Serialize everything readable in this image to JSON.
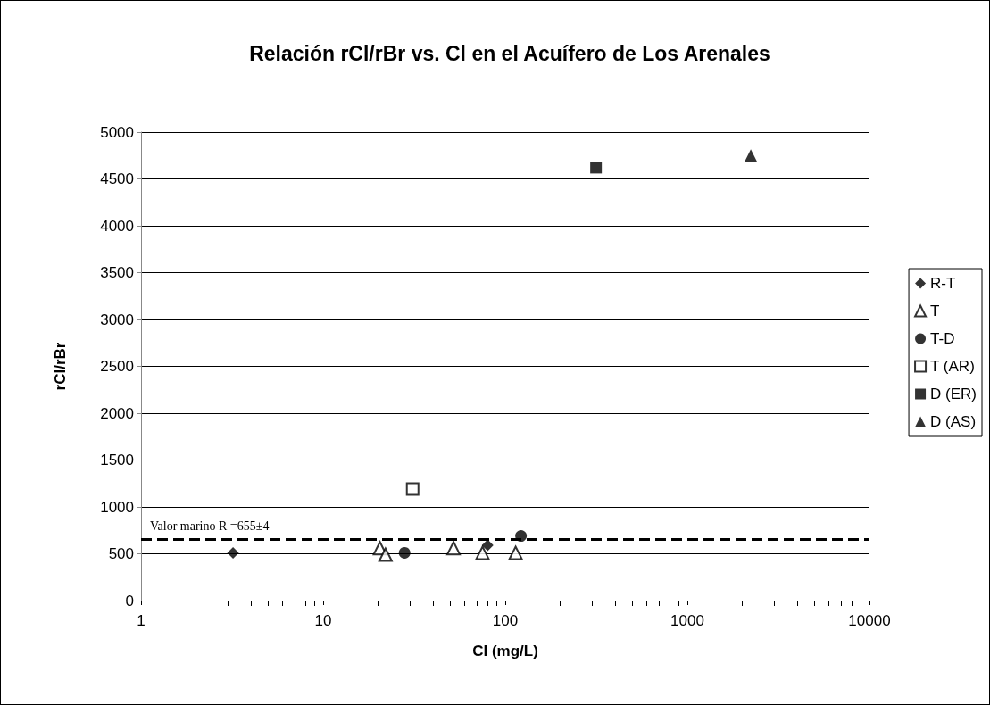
{
  "chart_data": {
    "type": "scatter",
    "title": "Relación rCl/rBr vs. Cl en el Acuífero de Los Arenales",
    "xlabel": "Cl (mg/L)",
    "ylabel": "rCl/rBr",
    "log": "x",
    "xlim": [
      1,
      10000
    ],
    "xticks": [
      1,
      10,
      100,
      1000,
      10000
    ],
    "ylim": [
      0,
      5000
    ],
    "yticks": [
      0,
      500,
      1000,
      1500,
      2000,
      2500,
      3000,
      3500,
      4000,
      4500,
      5000
    ],
    "grid": "y",
    "legend": "right",
    "series": [
      {
        "name": "R-T",
        "color": "#000000",
        "marker": "diamond",
        "x": [
          3.2,
          80
        ],
        "values": [
          510,
          590
        ]
      },
      {
        "name": "T",
        "color": "#ffffff",
        "marker": "triangle",
        "x": [
          20.5,
          22,
          52,
          75,
          114
        ],
        "values": [
          560,
          490,
          560,
          510,
          510
        ]
      },
      {
        "name": "T-D",
        "color": "#000000",
        "marker": "circle",
        "x": [
          28,
          122
        ],
        "values": [
          510,
          690
        ]
      },
      {
        "name": "T (AR)",
        "color": "#ffffff",
        "marker": "square",
        "x": [
          31
        ],
        "values": [
          1190
        ]
      },
      {
        "name": "D (ER)",
        "color": "#000000",
        "marker": "square",
        "x": [
          315
        ],
        "values": [
          4620
        ]
      },
      {
        "name": "D (AS)",
        "color": "#000000",
        "marker": "triangle",
        "x": [
          2230
        ],
        "values": [
          4750
        ]
      }
    ],
    "ref_lines": [
      {
        "axis": "y",
        "value": 655,
        "label": "Valor marino R =655±4",
        "color": "#000000",
        "line_style": "dashed"
      }
    ]
  }
}
